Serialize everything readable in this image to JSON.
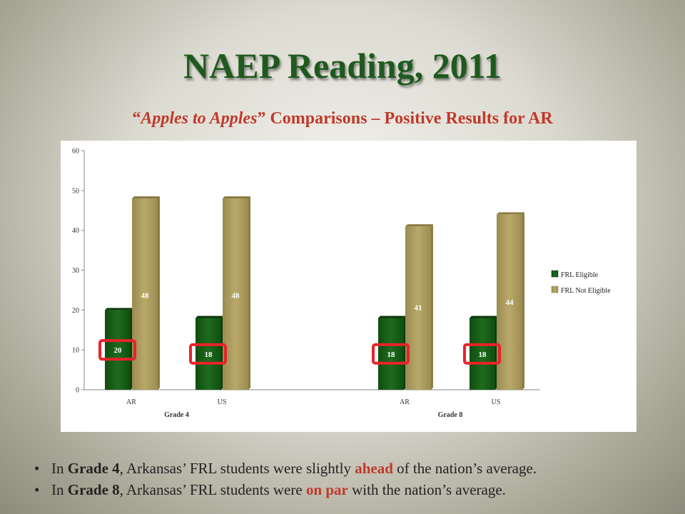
{
  "slide": {
    "title": "NAEP Reading, 2011",
    "subtitle_quote_open": "“",
    "subtitle_italic": "Apples to Apples",
    "subtitle_rest": "” Comparisons – Positive Results for AR"
  },
  "bullets": [
    {
      "pre": "In ",
      "bold": "Grade 4",
      "mid": ", Arkansas’ FRL students were slightly ",
      "highlight": "ahead",
      "post": " of the nation’s average."
    },
    {
      "pre": "In ",
      "bold": "Grade 8",
      "mid": ", Arkansas’ FRL students were ",
      "highlight": "on par",
      "post": " with the nation’s average."
    }
  ],
  "colors": {
    "frl_eligible": "#1f6b1f",
    "frl_not_eligible": "#b9a96a",
    "highlight_box": "#e8232a",
    "title": "#1e5a1e",
    "subtitle": "#c0392b"
  },
  "chart_data": {
    "type": "bar",
    "groups": [
      "Grade 4",
      "Grade 8"
    ],
    "categories": [
      "AR",
      "US",
      "AR",
      "US"
    ],
    "category_group": [
      "Grade 4",
      "Grade 4",
      "Grade 8",
      "Grade 8"
    ],
    "series": [
      {
        "name": "FRL Eligible",
        "values": [
          20,
          18,
          18,
          18
        ],
        "labels": [
          "20",
          "18",
          "18",
          "18"
        ]
      },
      {
        "name": "FRL Not Eligible",
        "values": [
          48,
          48,
          41,
          44
        ],
        "labels": [
          "48",
          "48",
          "41",
          "44"
        ]
      }
    ],
    "ylim": [
      0,
      60
    ],
    "yticks": [
      "0",
      "10",
      "20",
      "30",
      "40",
      "50",
      "60"
    ],
    "legend_position": "right",
    "highlighted_series": "FRL Eligible",
    "grid": false
  }
}
